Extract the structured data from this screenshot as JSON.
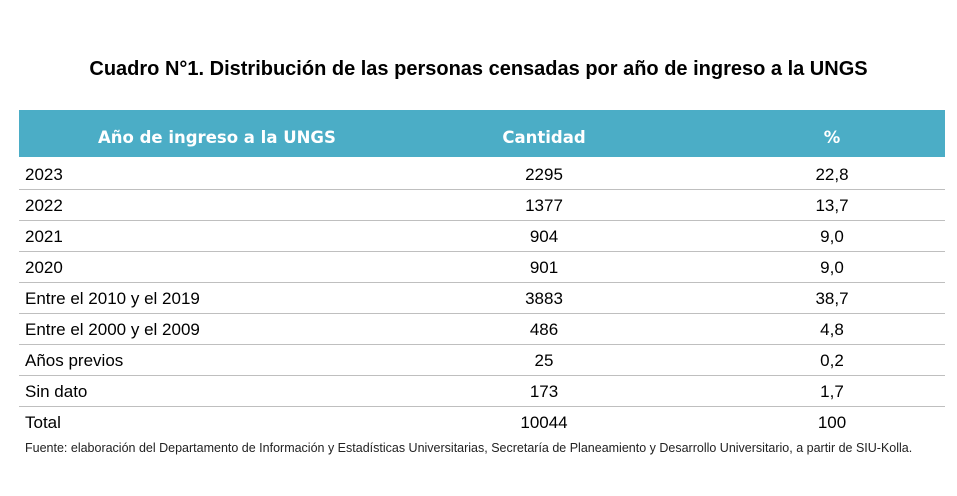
{
  "title": "Cuadro N°1. Distribución de las personas censadas por año de ingreso a la UNGS",
  "table": {
    "headers": [
      "Año de ingreso a la UNGS",
      "Cantidad",
      "%"
    ],
    "rows": [
      {
        "label": "2023",
        "cantidad": "2295",
        "porcentaje": "22,8"
      },
      {
        "label": "2022",
        "cantidad": "1377",
        "porcentaje": "13,7"
      },
      {
        "label": "2021",
        "cantidad": "904",
        "porcentaje": "9,0"
      },
      {
        "label": "2020",
        "cantidad": "901",
        "porcentaje": "9,0"
      },
      {
        "label": "Entre el 2010 y el 2019",
        "cantidad": "3883",
        "porcentaje": "38,7"
      },
      {
        "label": "Entre el 2000 y el 2009",
        "cantidad": "486",
        "porcentaje": "4,8"
      },
      {
        "label": "Años previos",
        "cantidad": "25",
        "porcentaje": "0,2"
      },
      {
        "label": "Sin dato",
        "cantidad": "173",
        "porcentaje": "1,7"
      },
      {
        "label": "Total",
        "cantidad": "10044",
        "porcentaje": "100"
      }
    ]
  },
  "source": "Fuente: elaboración del Departamento de Información y Estadísticas Universitarias, Secretaría de Planeamiento y Desarrollo Universitario, a partir de  SIU-Kolla.",
  "colors": {
    "header_background": "#4badc6",
    "header_text": "#ffffff",
    "row_divider": "#bfbfbf"
  }
}
